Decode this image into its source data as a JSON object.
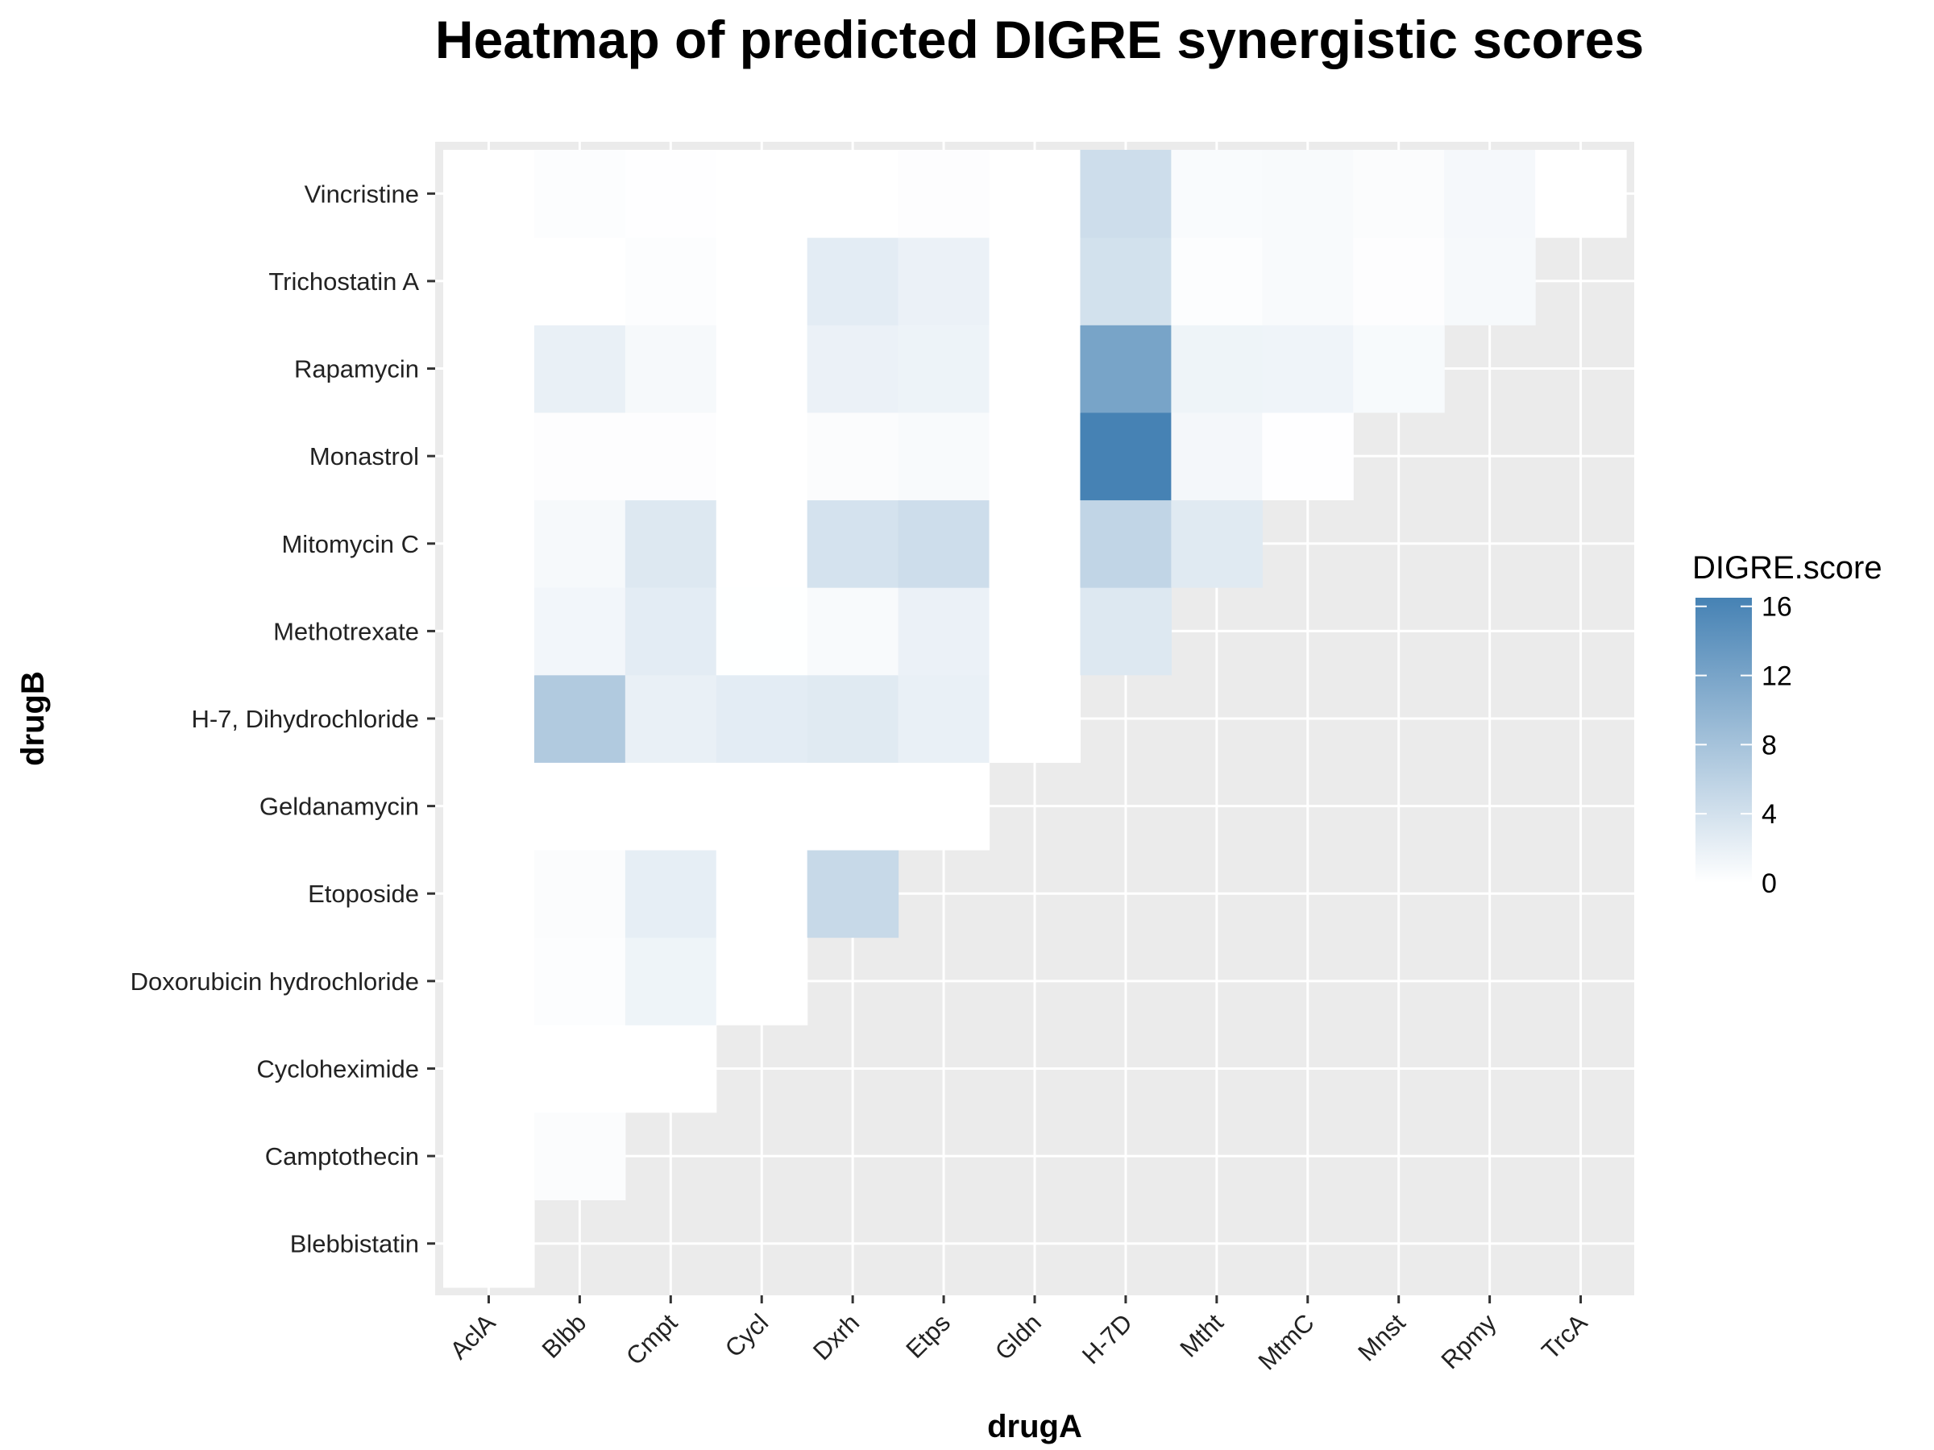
{
  "chart_data": {
    "type": "heatmap",
    "title": "Heatmap of predicted DIGRE synergistic scores",
    "xlabel": "drugA",
    "ylabel": "drugB",
    "x_categories": [
      "AclA",
      "Blbb",
      "Cmpt",
      "Cycl",
      "Dxrh",
      "Etps",
      "Gldn",
      "H-7D",
      "Mtht",
      "MtmC",
      "Mnst",
      "Rpmy",
      "TrcA"
    ],
    "y_categories": [
      "Blebbistatin",
      "Camptothecin",
      "Cycloheximide",
      "Doxorubicin hydrochloride",
      "Etoposide",
      "Geldanamycin",
      "H-7, Dihydrochloride",
      "Methotrexate",
      "Mitomycin C",
      "Monastrol",
      "Rapamycin",
      "Trichostatin A",
      "Vincristine"
    ],
    "legend": {
      "title": "DIGRE.score",
      "ticks": [
        0,
        4,
        8,
        12,
        16
      ],
      "min": 0,
      "max": 16.5,
      "low_color": "#ffffff",
      "high_color": "#4682b4",
      "position": "right"
    },
    "background_color": "#ebebeb",
    "grid": true,
    "values": [
      [
        0
      ],
      [
        0,
        0.4
      ],
      [
        0,
        0,
        0
      ],
      [
        0,
        0.3,
        1.5,
        0
      ],
      [
        0,
        0.4,
        2.2,
        0,
        5.0
      ],
      [
        0,
        0,
        0,
        0,
        0,
        0
      ],
      [
        0,
        7.0,
        2.0,
        2.5,
        2.8,
        2.0,
        0
      ],
      [
        0,
        1.2,
        2.5,
        0.05,
        0.6,
        1.8,
        0,
        3.0
      ],
      [
        0,
        0.8,
        3.0,
        0,
        3.8,
        4.5,
        0,
        5.5,
        2.8
      ],
      [
        0,
        0.2,
        0.2,
        0,
        0.4,
        0.6,
        0,
        16.5,
        1.0,
        0.1
      ],
      [
        0,
        2.0,
        0.8,
        0,
        1.8,
        1.6,
        0,
        12.0,
        1.5,
        1.4,
        0.7
      ],
      [
        0,
        0,
        0.3,
        0,
        2.5,
        1.8,
        0,
        4.0,
        0.3,
        0.6,
        0.2,
        0.8
      ],
      [
        0,
        0.3,
        0.1,
        0,
        0,
        0.2,
        0,
        4.5,
        0.5,
        0.6,
        0.4,
        0.9,
        0
      ]
    ]
  }
}
